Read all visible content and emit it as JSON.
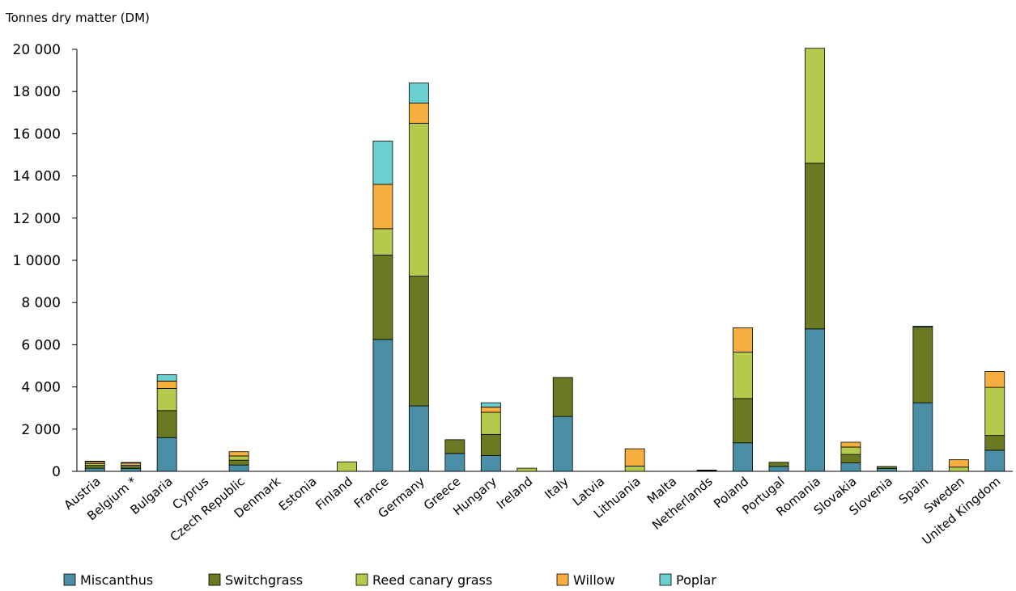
{
  "chart_data": {
    "type": "bar",
    "stacked": true,
    "ylabel": "Tonnes dry matter (DM)",
    "xlabel": "",
    "ylim": [
      0,
      20000
    ],
    "ytick_values": [
      0,
      2000,
      4000,
      6000,
      8000,
      10000,
      12000,
      14000,
      16000,
      18000,
      20000
    ],
    "ytick_labels": [
      "0",
      "2 000",
      "4 000",
      "6 000",
      "8 000",
      "1 0000",
      "12 000",
      "14 000",
      "16 000",
      "18 000",
      "20 000"
    ],
    "grid": false,
    "legend_position": "bottom-left",
    "categories": [
      "Austria",
      "Belgium *",
      "Bulgaria",
      "Cyprus",
      "Czech Republic",
      "Denmark",
      "Estonia",
      "Finland",
      "France",
      "Germany",
      "Greece",
      "Hungary",
      "Ireland",
      "Italy",
      "Latvia",
      "Lithuania",
      "Malta",
      "Netherlands",
      "Poland",
      "Portugal",
      "Romania",
      "Slovakia",
      "Slovenia",
      "Spain",
      "Sweden",
      "United Kingdom"
    ],
    "series": [
      {
        "name": "Miscanthus",
        "color": "#4a8fa5",
        "values": [
          150,
          130,
          1600,
          0,
          300,
          0,
          0,
          0,
          6250,
          3100,
          850,
          750,
          0,
          2600,
          0,
          0,
          0,
          30,
          1350,
          230,
          6750,
          400,
          130,
          3250,
          0,
          1000
        ]
      },
      {
        "name": "Switchgrass",
        "color": "#6a7a22",
        "values": [
          130,
          80,
          1280,
          0,
          230,
          0,
          0,
          0,
          4000,
          6150,
          650,
          1000,
          0,
          1850,
          0,
          0,
          0,
          30,
          2100,
          200,
          7850,
          400,
          100,
          3580,
          0,
          700
        ]
      },
      {
        "name": "Reed canary grass",
        "color": "#b5c94c",
        "values": [
          80,
          80,
          1050,
          0,
          200,
          0,
          0,
          450,
          1250,
          7250,
          0,
          1050,
          150,
          0,
          0,
          250,
          0,
          0,
          2200,
          0,
          5450,
          350,
          0,
          0,
          200,
          2280
        ]
      },
      {
        "name": "Willow",
        "color": "#f6ae3f",
        "values": [
          100,
          120,
          350,
          0,
          200,
          0,
          0,
          0,
          2100,
          950,
          0,
          250,
          0,
          0,
          0,
          820,
          0,
          0,
          1150,
          0,
          0,
          230,
          0,
          0,
          350,
          750
        ]
      },
      {
        "name": "Poplar",
        "color": "#6ccfcf",
        "values": [
          20,
          10,
          300,
          0,
          0,
          0,
          0,
          0,
          2050,
          950,
          0,
          200,
          0,
          0,
          0,
          0,
          0,
          0,
          0,
          0,
          0,
          0,
          0,
          50,
          0,
          0
        ]
      }
    ]
  }
}
